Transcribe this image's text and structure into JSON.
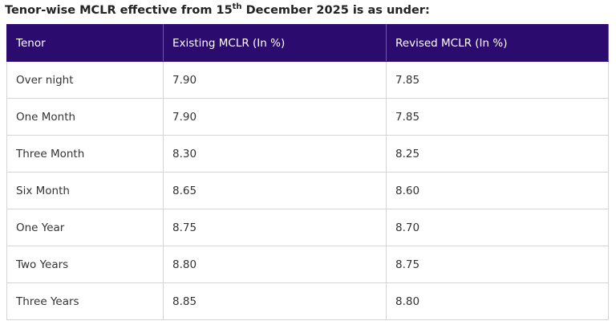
{
  "title": {
    "text": "Tenor-wise MCLR effective from 15",
    "superscript": "th",
    "text_after": " December 2025 is as under:"
  },
  "table": {
    "header": [
      "Tenor",
      "Existing MCLR (In %)",
      "Revised MCLR (In %)"
    ],
    "rows": [
      [
        "Over night",
        "7.90",
        "7.85"
      ],
      [
        "One Month",
        "7.90",
        "7.85"
      ],
      [
        "Three Month",
        "8.30",
        "8.25"
      ],
      [
        "Six Month",
        "8.65",
        "8.60"
      ],
      [
        "One Year",
        "8.75",
        "8.70"
      ],
      [
        "Two Years",
        "8.80",
        "8.75"
      ],
      [
        "Three Years",
        "8.85",
        "8.80"
      ]
    ]
  }
}
